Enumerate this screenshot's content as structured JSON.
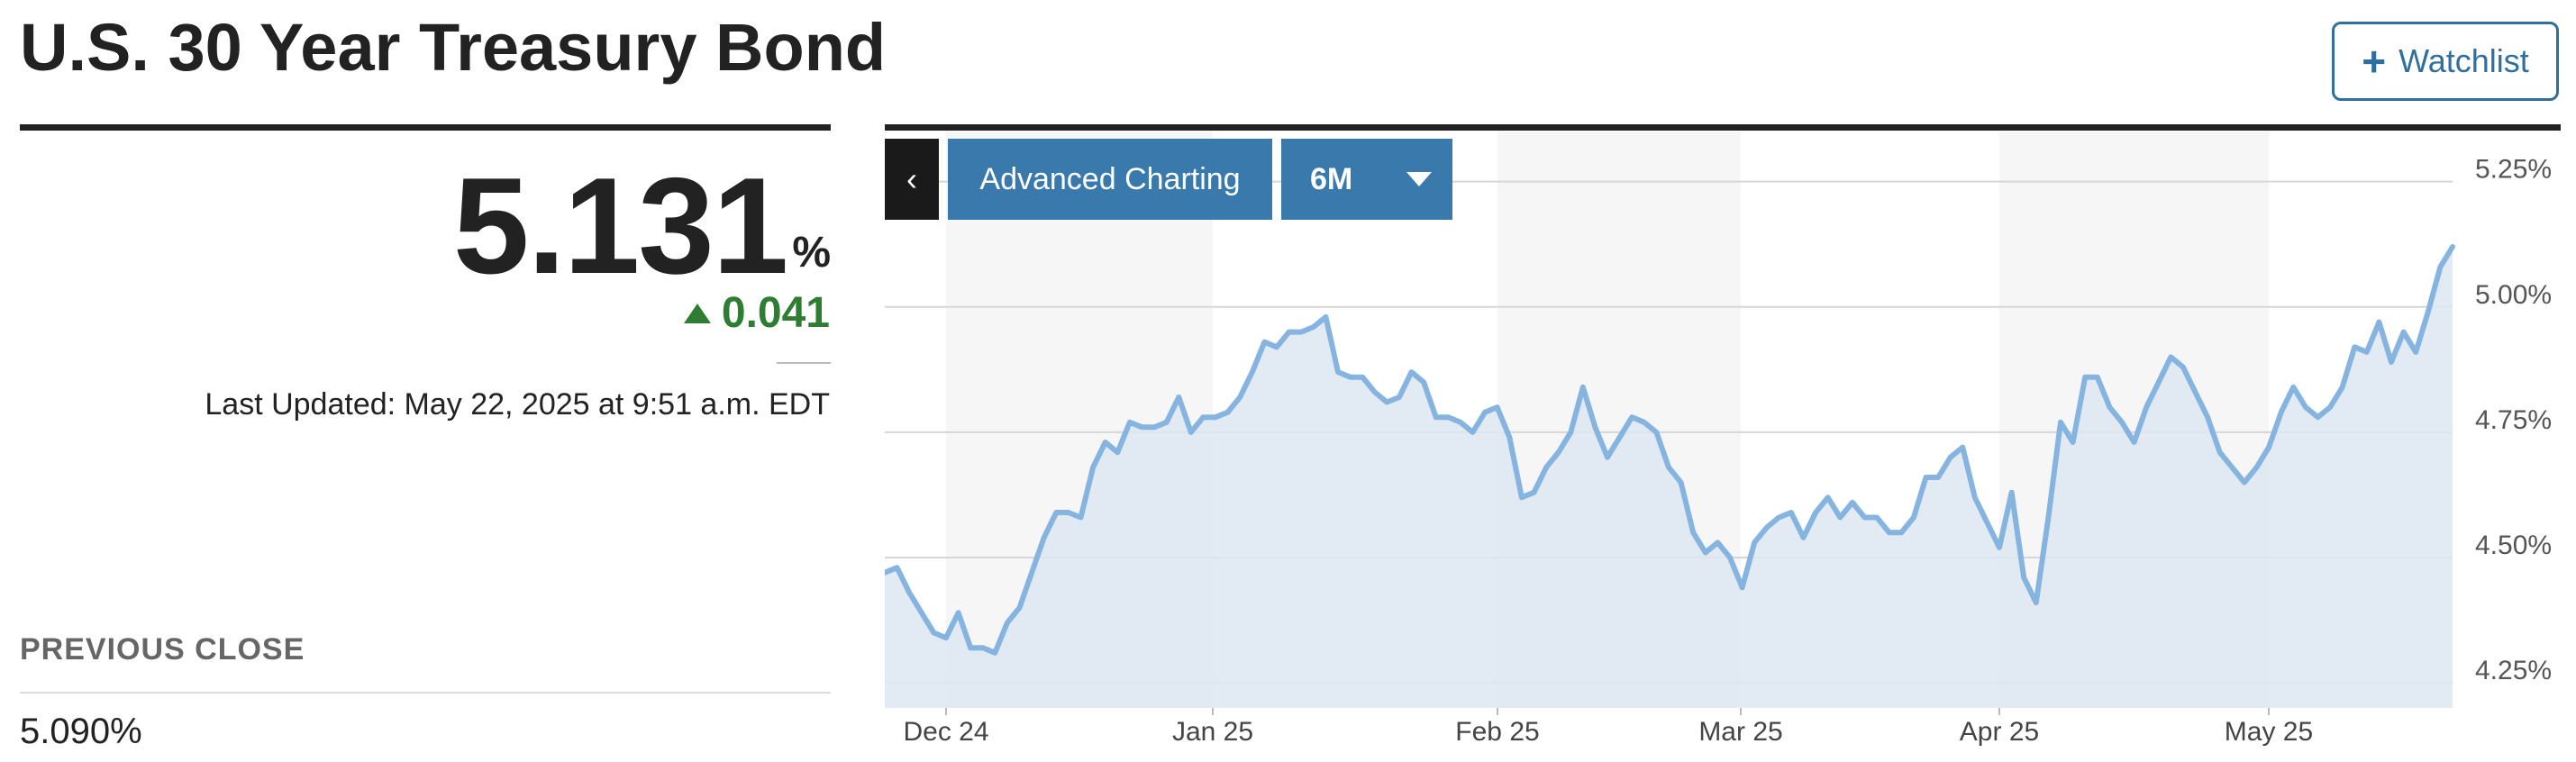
{
  "header": {
    "title": "U.S. 30 Year Treasury Bond",
    "watchlist_label": "Watchlist"
  },
  "quote": {
    "value": "5.131",
    "unit": "%",
    "change": "0.041",
    "last_updated": "Last Updated: May 22, 2025 at 9:51 a.m. EDT",
    "previous_close_label": "PREVIOUS CLOSE",
    "previous_close_value": "5.090%"
  },
  "chart_controls": {
    "back_symbol": "‹",
    "advanced_label": "Advanced Charting",
    "range_label": "6M"
  },
  "colors": {
    "up": "#2e7d32",
    "accent": "#3a79ab",
    "line": "#86b4e0",
    "fill": "#dde8f1"
  },
  "chart_data": {
    "type": "area",
    "x_axis_labels": [
      "Dec 24",
      "Jan 25",
      "Feb 25",
      "Mar 25",
      "Apr 25",
      "May 25"
    ],
    "y_axis_labels": [
      "5.25%",
      "5.00%",
      "4.75%",
      "4.50%",
      "4.25%"
    ],
    "y_ticks": [
      5.25,
      5.0,
      4.75,
      4.5,
      4.25
    ],
    "ylim": [
      4.2,
      5.35
    ],
    "grid": true,
    "series": [
      {
        "values": [
          4.47,
          4.48,
          4.43,
          4.39,
          4.35,
          4.34,
          4.39,
          4.32,
          4.32,
          4.31,
          4.37,
          4.4,
          4.47,
          4.54,
          4.59,
          4.59,
          4.58,
          4.68,
          4.73,
          4.71,
          4.77,
          4.76,
          4.76,
          4.77,
          4.82,
          4.75,
          4.78,
          4.78,
          4.79,
          4.82,
          4.87,
          4.93,
          4.92,
          4.95,
          4.95,
          4.96,
          4.98,
          4.87,
          4.86,
          4.86,
          4.83,
          4.81,
          4.82,
          4.87,
          4.85,
          4.78,
          4.78,
          4.77,
          4.75,
          4.79,
          4.8,
          4.74,
          4.62,
          4.63,
          4.68,
          4.71,
          4.75,
          4.84,
          4.76,
          4.7,
          4.74,
          4.78,
          4.77,
          4.75,
          4.68,
          4.65,
          4.55,
          4.51,
          4.53,
          4.5,
          4.44,
          4.53,
          4.56,
          4.58,
          4.59,
          4.54,
          4.59,
          4.62,
          4.58,
          4.61,
          4.58,
          4.58,
          4.55,
          4.55,
          4.58,
          4.66,
          4.66,
          4.7,
          4.72,
          4.62,
          4.57,
          4.52,
          4.63,
          4.46,
          4.41,
          4.58,
          4.77,
          4.73,
          4.86,
          4.86,
          4.8,
          4.77,
          4.73,
          4.8,
          4.85,
          4.9,
          4.88,
          4.83,
          4.78,
          4.71,
          4.68,
          4.65,
          4.68,
          4.72,
          4.79,
          4.84,
          4.8,
          4.78,
          4.8,
          4.84,
          4.92,
          4.91,
          4.97,
          4.89,
          4.95,
          4.91,
          4.99,
          5.08,
          5.12
        ]
      }
    ]
  }
}
